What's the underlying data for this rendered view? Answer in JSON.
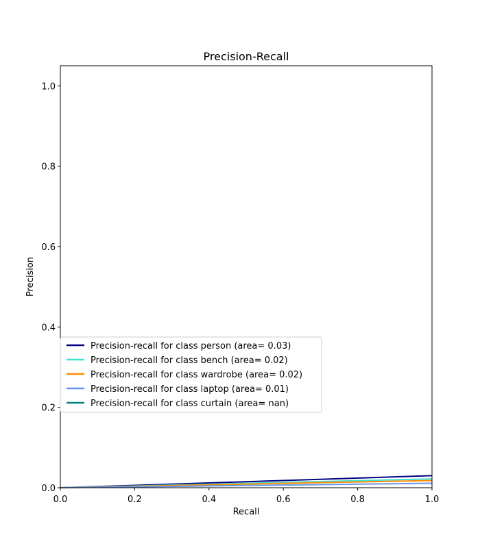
{
  "chart_data": {
    "type": "line",
    "title": "Precision-Recall",
    "xlabel": "Recall",
    "ylabel": "Precision",
    "xlim": [
      0.0,
      1.0
    ],
    "ylim": [
      0.0,
      1.05
    ],
    "xticks": [
      "0.0",
      "0.2",
      "0.4",
      "0.6",
      "0.8",
      "1.0"
    ],
    "yticks": [
      "0.0",
      "0.2",
      "0.4",
      "0.6",
      "0.8",
      "1.0"
    ],
    "grid": false,
    "legend_position": "lower-left",
    "series": [
      {
        "name": "Precision-recall for class person (area= 0.03)",
        "color": "#000080",
        "x": [
          0.0,
          1.0
        ],
        "y": [
          0.0,
          0.03
        ]
      },
      {
        "name": "Precision-recall for class bench (area= 0.02)",
        "color": "#40e0d0",
        "x": [
          0.0,
          1.0
        ],
        "y": [
          0.0,
          0.022
        ]
      },
      {
        "name": "Precision-recall for class wardrobe (area= 0.02)",
        "color": "#ff8c00",
        "x": [
          0.0,
          1.0
        ],
        "y": [
          0.0,
          0.018
        ]
      },
      {
        "name": "Precision-recall for class laptop (area= 0.01)",
        "color": "#6495ed",
        "x": [
          0.0,
          1.0
        ],
        "y": [
          0.0,
          0.011
        ]
      },
      {
        "name": "Precision-recall for class curtain (area= nan)",
        "color": "#008080",
        "x": [],
        "y": []
      }
    ]
  }
}
